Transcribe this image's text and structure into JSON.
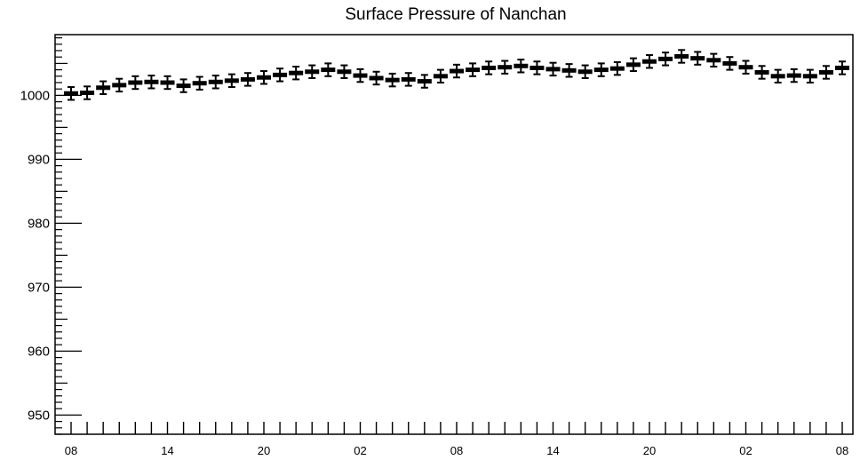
{
  "chart_data": {
    "type": "scatter",
    "title": "Surface Pressure of Nanchan",
    "xlabel": "",
    "ylabel": "",
    "ylim": [
      947,
      1009.5
    ],
    "yticks": [
      950,
      960,
      970,
      980,
      990,
      1000
    ],
    "ytick_labels": [
      "950",
      "960",
      "970",
      "980",
      "990",
      "1000"
    ],
    "xtick_labels": [
      "08",
      "14",
      "20",
      "02",
      "08",
      "14",
      "20",
      "02",
      "08"
    ],
    "xtick_hours": [
      0,
      6,
      12,
      18,
      24,
      30,
      36,
      42,
      48
    ],
    "x_unit": "hour",
    "grid": false,
    "error": 1.0,
    "series": [
      {
        "x": [
          0,
          1,
          2,
          3,
          4,
          5,
          6,
          7,
          8,
          9,
          10,
          11,
          12,
          13,
          14,
          15,
          16,
          17,
          18,
          19,
          20,
          21,
          22,
          23,
          24,
          25,
          26,
          27,
          28,
          29,
          30,
          31,
          32,
          33,
          34,
          35,
          36,
          37,
          38,
          39,
          40,
          41,
          42,
          43,
          44,
          45,
          46,
          47,
          48
        ],
        "values": [
          1000.3,
          1000.4,
          1001.2,
          1001.6,
          1002.0,
          1002.1,
          1002.0,
          1001.5,
          1001.9,
          1002.1,
          1002.3,
          1002.5,
          1002.8,
          1003.2,
          1003.5,
          1003.7,
          1004.0,
          1003.7,
          1003.1,
          1002.7,
          1002.4,
          1002.5,
          1002.2,
          1003.0,
          1003.8,
          1004.0,
          1004.3,
          1004.4,
          1004.6,
          1004.3,
          1004.1,
          1003.9,
          1003.7,
          1004.0,
          1004.2,
          1004.8,
          1005.3,
          1005.7,
          1006.1,
          1005.8,
          1005.5,
          1005.0,
          1004.4,
          1003.6,
          1003.0,
          1003.1,
          1003.0,
          1003.6,
          1004.3
        ]
      }
    ]
  }
}
